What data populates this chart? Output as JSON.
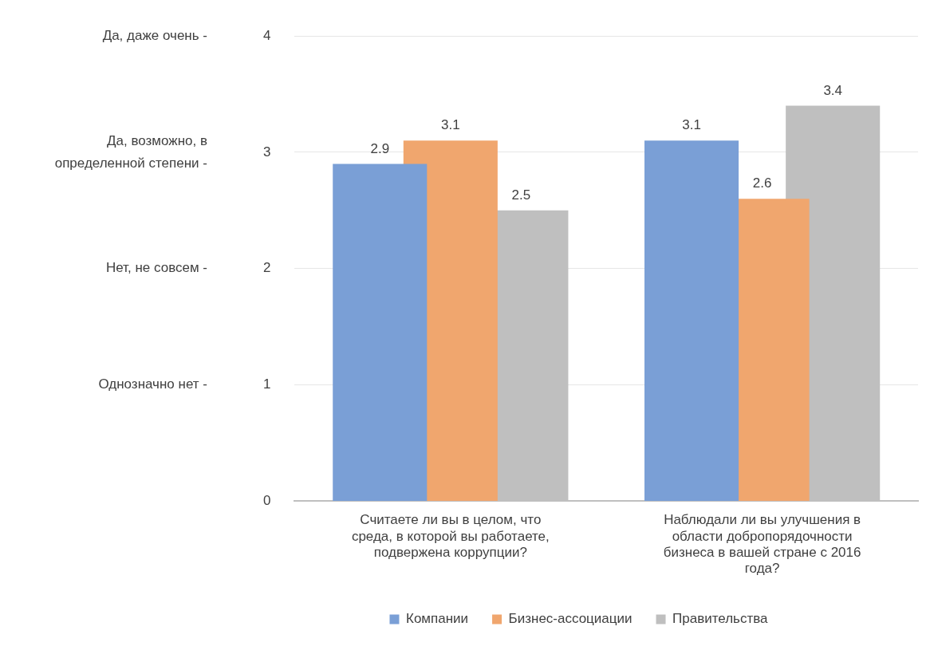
{
  "chart_data": {
    "type": "bar",
    "categories": [
      "Считаете ли вы в целом, что среда, в которой вы работаете, подвержена коррупции?",
      "Наблюдали ли вы улучшения в области добропорядочности бизнеса в вашей стране с 2016 года?"
    ],
    "series": [
      {
        "name": "Компании",
        "color": "#7a9fd6",
        "values": [
          2.9,
          3.1
        ]
      },
      {
        "name": "Бизнес-ассоциации",
        "color": "#f0a66e",
        "values": [
          3.1,
          2.6
        ]
      },
      {
        "name": "Правительства",
        "color": "#bfbfbf",
        "values": [
          2.5,
          3.4
        ]
      }
    ],
    "ylim": [
      0,
      4
    ],
    "yticks": [
      0,
      1,
      2,
      3,
      4
    ],
    "grid": "y",
    "legend": "bottom",
    "data_labels": true,
    "annotations": [
      "Да, даже очень -",
      "Да, возможно, в определенной степени -",
      "Нет, не совсем -",
      "Однозначно нет -"
    ]
  }
}
